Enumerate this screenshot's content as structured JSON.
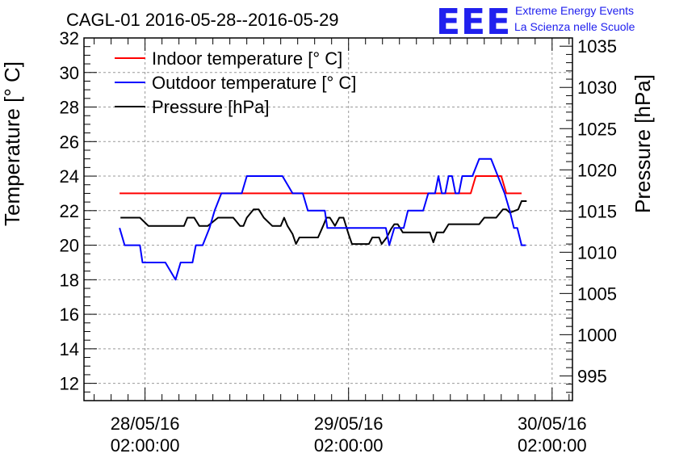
{
  "header": {
    "title": "CAGL-01 2016-05-28--2016-05-29",
    "logo_text": "EEE",
    "logo_line1": "Extreme Energy Events",
    "logo_line2": "La Scienza nelle Scuole"
  },
  "colors": {
    "indoor": "#ff0000",
    "outdoor": "#0000ff",
    "pressure": "#000000",
    "logo": "#2020ee",
    "grid": "#999999"
  },
  "chart_data": {
    "type": "line",
    "title": "CAGL-01 2016-05-28--2016-05-29",
    "ylabel": "Temperature [° C]",
    "y2label": "Pressure [hPa]",
    "xlabel": "",
    "xlim_hours": [
      -7.2,
      50.4
    ],
    "ylim": [
      11,
      32
    ],
    "y2lim": [
      992,
      1036
    ],
    "grid": true,
    "legend_position": "top-left",
    "x_ticks": [
      {
        "hours": 0,
        "date": "28/05/16",
        "time": "02:00:00"
      },
      {
        "hours": 24,
        "date": "29/05/16",
        "time": "02:00:00"
      },
      {
        "hours": 48,
        "date": "30/05/16",
        "time": "02:00:00"
      }
    ],
    "y_ticks": [
      12,
      14,
      16,
      18,
      20,
      22,
      24,
      26,
      28,
      30,
      32
    ],
    "y2_ticks": [
      995,
      1000,
      1005,
      1010,
      1015,
      1020,
      1025,
      1030,
      1035
    ],
    "series": [
      {
        "name": "Indoor temperature [° C]",
        "axis": "left",
        "color": "#ff0000",
        "points": [
          [
            -3.0,
            23
          ],
          [
            38.4,
            23
          ],
          [
            39.0,
            24
          ],
          [
            42.0,
            24
          ],
          [
            42.6,
            23
          ],
          [
            44.4,
            23
          ]
        ]
      },
      {
        "name": "Outdoor temperature [° C]",
        "axis": "left",
        "color": "#0000ff",
        "points": [
          [
            -3.0,
            21
          ],
          [
            -2.4,
            20
          ],
          [
            -0.6,
            20
          ],
          [
            -0.3,
            19
          ],
          [
            2.4,
            19
          ],
          [
            3.6,
            18
          ],
          [
            4.2,
            19
          ],
          [
            5.6,
            19
          ],
          [
            6.0,
            20
          ],
          [
            6.8,
            20
          ],
          [
            7.6,
            21
          ],
          [
            8.2,
            22
          ],
          [
            9.0,
            23
          ],
          [
            11.4,
            23
          ],
          [
            12.0,
            24
          ],
          [
            16.2,
            24
          ],
          [
            17.4,
            23
          ],
          [
            18.6,
            23
          ],
          [
            19.2,
            22
          ],
          [
            21.2,
            22
          ],
          [
            21.5,
            21
          ],
          [
            28.4,
            21
          ],
          [
            28.8,
            20
          ],
          [
            29.4,
            21
          ],
          [
            30.5,
            21
          ],
          [
            31.0,
            22
          ],
          [
            32.8,
            22
          ],
          [
            33.4,
            23
          ],
          [
            34.2,
            23
          ],
          [
            34.6,
            24
          ],
          [
            35.0,
            23
          ],
          [
            35.4,
            23
          ],
          [
            35.8,
            24
          ],
          [
            36.2,
            24
          ],
          [
            36.6,
            23
          ],
          [
            37.0,
            23
          ],
          [
            37.4,
            24
          ],
          [
            38.6,
            24
          ],
          [
            39.4,
            25
          ],
          [
            40.8,
            25
          ],
          [
            41.6,
            24
          ],
          [
            42.4,
            23
          ],
          [
            43.0,
            22
          ],
          [
            43.5,
            21
          ],
          [
            43.9,
            21
          ],
          [
            44.4,
            20
          ],
          [
            44.9,
            20
          ]
        ]
      },
      {
        "name": "Pressure [hPa]",
        "axis": "right",
        "color": "#000000",
        "points": [
          [
            -2.9,
            1014.2
          ],
          [
            -0.6,
            1014.2
          ],
          [
            0.4,
            1013.2
          ],
          [
            4.6,
            1013.2
          ],
          [
            5.0,
            1014.2
          ],
          [
            5.8,
            1014.2
          ],
          [
            6.4,
            1013.2
          ],
          [
            7.4,
            1013.2
          ],
          [
            8.6,
            1014.2
          ],
          [
            10.4,
            1014.2
          ],
          [
            11.2,
            1013.2
          ],
          [
            11.6,
            1013.2
          ],
          [
            12.0,
            1014.2
          ],
          [
            12.8,
            1015.2
          ],
          [
            13.4,
            1015.2
          ],
          [
            14.0,
            1014.2
          ],
          [
            15.0,
            1013.2
          ],
          [
            16.0,
            1013.2
          ],
          [
            16.4,
            1014.2
          ],
          [
            16.8,
            1013.2
          ],
          [
            17.4,
            1012.2
          ],
          [
            17.8,
            1011.0
          ],
          [
            18.2,
            1011.8
          ],
          [
            20.4,
            1011.8
          ],
          [
            21.0,
            1013.2
          ],
          [
            21.4,
            1014.2
          ],
          [
            21.8,
            1014.2
          ],
          [
            22.4,
            1013.2
          ],
          [
            22.9,
            1014.2
          ],
          [
            23.4,
            1014.2
          ],
          [
            24.0,
            1012.2
          ],
          [
            24.4,
            1011.0
          ],
          [
            26.4,
            1011.0
          ],
          [
            26.8,
            1011.8
          ],
          [
            27.6,
            1011.8
          ],
          [
            27.9,
            1011.0
          ],
          [
            28.5,
            1011.8
          ],
          [
            29.0,
            1012.8
          ],
          [
            29.4,
            1013.4
          ],
          [
            29.8,
            1013.4
          ],
          [
            30.4,
            1012.4
          ],
          [
            33.6,
            1012.4
          ],
          [
            34.0,
            1011.2
          ],
          [
            34.4,
            1012.4
          ],
          [
            35.2,
            1012.4
          ],
          [
            35.8,
            1013.4
          ],
          [
            39.4,
            1013.4
          ],
          [
            40.0,
            1014.2
          ],
          [
            41.4,
            1014.2
          ],
          [
            42.2,
            1015.2
          ],
          [
            42.6,
            1015.2
          ],
          [
            43.0,
            1014.8
          ],
          [
            44.0,
            1015.2
          ],
          [
            44.4,
            1016.2
          ],
          [
            45.0,
            1016.2
          ]
        ]
      }
    ]
  }
}
